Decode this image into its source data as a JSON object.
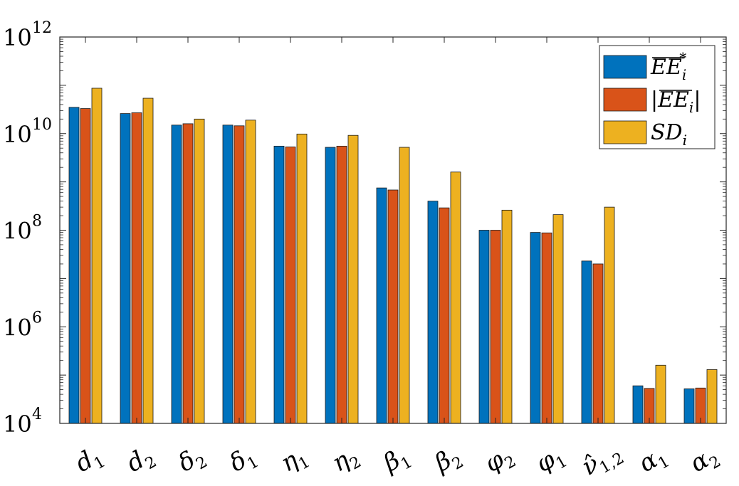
{
  "chart_data": {
    "type": "bar",
    "yscale": "log",
    "ylim": [
      10000,
      1000000000000
    ],
    "y_ticks": [
      {
        "base": "10",
        "exp": "4",
        "value": 10000
      },
      {
        "base": "10",
        "exp": "6",
        "value": 1000000
      },
      {
        "base": "10",
        "exp": "8",
        "value": 100000000
      },
      {
        "base": "10",
        "exp": "10",
        "value": 10000000000
      },
      {
        "base": "10",
        "exp": "12",
        "value": 1000000000000
      }
    ],
    "categories": [
      {
        "sym": "d",
        "sub": "1"
      },
      {
        "sym": "d",
        "sub": "2"
      },
      {
        "sym": "δ",
        "sub": "2"
      },
      {
        "sym": "δ",
        "sub": "1"
      },
      {
        "sym": "η",
        "sub": "1"
      },
      {
        "sym": "η",
        "sub": "2"
      },
      {
        "sym": "β",
        "sub": "1"
      },
      {
        "sym": "β",
        "sub": "2"
      },
      {
        "sym": "φ",
        "sub": "2"
      },
      {
        "sym": "φ",
        "sub": "1"
      },
      {
        "sym": "ν̂",
        "sub": "1,2"
      },
      {
        "sym": "α",
        "sub": "1"
      },
      {
        "sym": "α",
        "sub": "2"
      }
    ],
    "series": [
      {
        "name": "EE*",
        "legend_main": "EE",
        "legend_sub": "i",
        "legend_sup": "*",
        "color": "#0072BD",
        "values": [
          35000000000,
          26000000000,
          15000000000,
          15000000000,
          5500000000,
          5200000000,
          750000000,
          400000000,
          100000000,
          90000000,
          23000000,
          60000,
          52000
        ]
      },
      {
        "name": "|EE|",
        "legend_main": "EE",
        "legend_sub": "i",
        "legend_sup": "",
        "color": "#D95319",
        "values": [
          33000000000,
          27000000000,
          16000000000,
          14500000000,
          5300000000,
          5500000000,
          680000000,
          290000000,
          100000000,
          88000000,
          20000000,
          53000,
          54000
        ]
      },
      {
        "name": "SD",
        "legend_main": "SD",
        "legend_sub": "i",
        "legend_sup": "",
        "color": "#EDB120",
        "values": [
          87000000000,
          54000000000,
          20000000000,
          19000000000,
          9800000000,
          9200000000,
          5200000000,
          1600000000,
          260000000,
          210000000,
          300000000,
          160000,
          130000
        ]
      }
    ],
    "legend_position": "top-right",
    "grid": false
  }
}
